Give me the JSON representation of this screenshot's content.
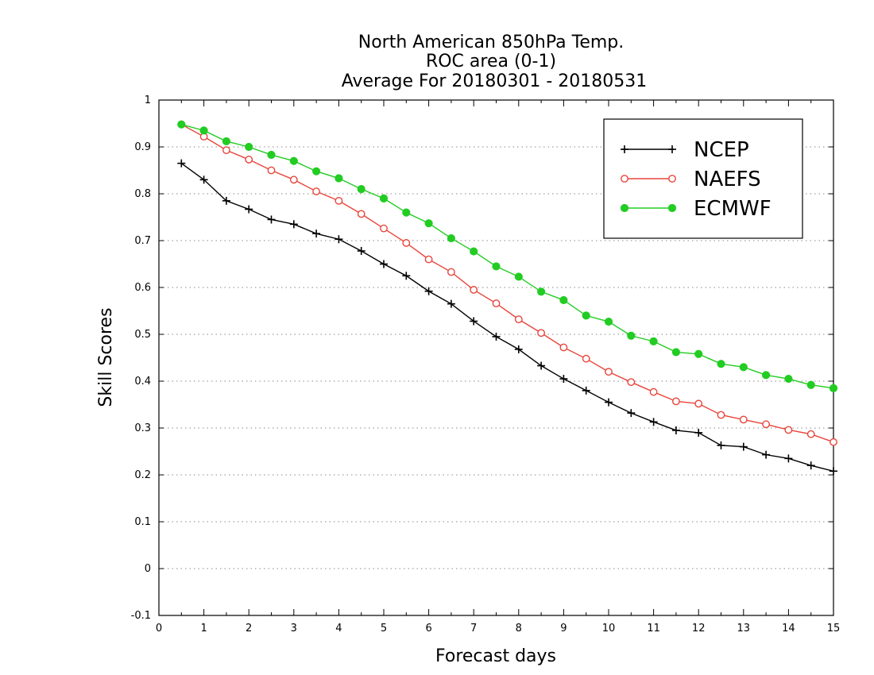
{
  "chart_data": {
    "type": "line",
    "title": [
      "North American 850hPa Temp.",
      "ROC area (0-1)",
      "Average For 20180301 - 20180531"
    ],
    "xlabel": "Forecast days",
    "ylabel": "Skill Scores",
    "xlim": [
      0,
      15
    ],
    "ylim": [
      -0.1,
      1
    ],
    "x_ticks": [
      0,
      1,
      2,
      3,
      4,
      5,
      6,
      7,
      8,
      9,
      10,
      11,
      12,
      13,
      14,
      15
    ],
    "y_ticks": [
      -0.1,
      0,
      0.1,
      0.2,
      0.3,
      0.4,
      0.5,
      0.6,
      0.7,
      0.8,
      0.9,
      1
    ],
    "y_tick_labels": [
      "-0.1",
      "0",
      "0.1",
      "0.2",
      "0.3",
      "0.4",
      "0.5",
      "0.6",
      "0.7",
      "0.8",
      "0.9",
      "1"
    ],
    "grid": {
      "horizontal_dotted": true
    },
    "legend": {
      "position": "top-right",
      "boxed": true
    },
    "x": [
      0.5,
      1,
      1.5,
      2,
      2.5,
      3,
      3.5,
      4,
      4.5,
      5,
      5.5,
      6,
      6.5,
      7,
      7.5,
      8,
      8.5,
      9,
      9.5,
      10,
      10.5,
      11,
      11.5,
      12,
      12.5,
      13,
      13.5,
      14,
      14.5,
      15
    ],
    "series": [
      {
        "name": "NCEP",
        "color": "#000000",
        "marker": "plus",
        "values": [
          0.865,
          0.83,
          0.785,
          0.767,
          0.745,
          0.735,
          0.715,
          0.703,
          0.678,
          0.65,
          0.625,
          0.592,
          0.565,
          0.528,
          0.495,
          0.468,
          0.433,
          0.405,
          0.38,
          0.355,
          0.332,
          0.313,
          0.295,
          0.29,
          0.263,
          0.26,
          0.243,
          0.235,
          0.22,
          0.208
        ]
      },
      {
        "name": "NAEFS",
        "color": "#e8453c",
        "marker": "open-circle",
        "values": [
          0.948,
          0.922,
          0.893,
          0.873,
          0.85,
          0.83,
          0.805,
          0.785,
          0.757,
          0.726,
          0.695,
          0.66,
          0.633,
          0.595,
          0.566,
          0.532,
          0.503,
          0.472,
          0.448,
          0.42,
          0.398,
          0.377,
          0.357,
          0.352,
          0.328,
          0.318,
          0.308,
          0.296,
          0.287,
          0.27
        ]
      },
      {
        "name": "ECMWF",
        "color": "#22cc22",
        "marker": "filled-circle",
        "values": [
          0.948,
          0.935,
          0.912,
          0.9,
          0.883,
          0.87,
          0.848,
          0.833,
          0.81,
          0.79,
          0.76,
          0.737,
          0.705,
          0.677,
          0.645,
          0.623,
          0.591,
          0.573,
          0.54,
          0.527,
          0.497,
          0.485,
          0.462,
          0.458,
          0.437,
          0.43,
          0.413,
          0.405,
          0.392,
          0.385
        ]
      }
    ]
  }
}
